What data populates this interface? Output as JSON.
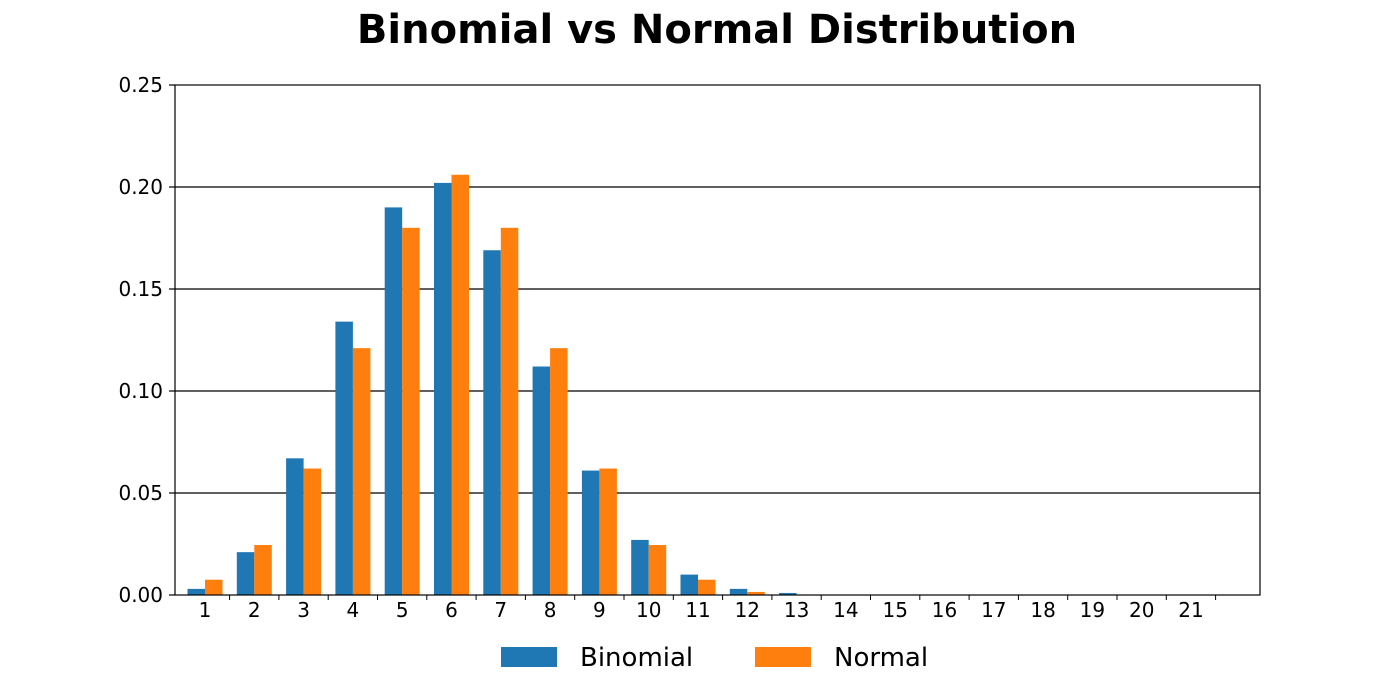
{
  "chart_data": {
    "type": "bar",
    "title": "Binomial vs Normal Distribution",
    "xlabel": "",
    "ylabel": "",
    "categories": [
      "1",
      "2",
      "3",
      "4",
      "5",
      "6",
      "7",
      "8",
      "9",
      "10",
      "11",
      "12",
      "13",
      "14",
      "15",
      "16",
      "17",
      "18",
      "19",
      "20",
      "21"
    ],
    "series": [
      {
        "name": "Binomial",
        "color": "#1f77b4",
        "values": [
          0.003,
          0.021,
          0.067,
          0.134,
          0.19,
          0.202,
          0.169,
          0.112,
          0.061,
          0.027,
          0.01,
          0.003,
          0.001,
          0,
          0,
          0,
          0,
          0,
          0,
          0,
          0
        ]
      },
      {
        "name": "Normal",
        "color": "#ff7f0e",
        "values": [
          0.0075,
          0.0245,
          0.062,
          0.121,
          0.18,
          0.206,
          0.18,
          0.121,
          0.062,
          0.0245,
          0.0075,
          0.0015,
          0.0002,
          0,
          0,
          0,
          0,
          0,
          0,
          0,
          0
        ]
      }
    ],
    "ylim": [
      0,
      0.25
    ],
    "yticks": [
      "0.00",
      "0.05",
      "0.10",
      "0.15",
      "0.20",
      "0.25"
    ],
    "ytick_values": [
      0,
      0.05,
      0.1,
      0.15,
      0.2,
      0.25
    ],
    "grid": "horizontal",
    "legend_position": "bottom-center"
  }
}
